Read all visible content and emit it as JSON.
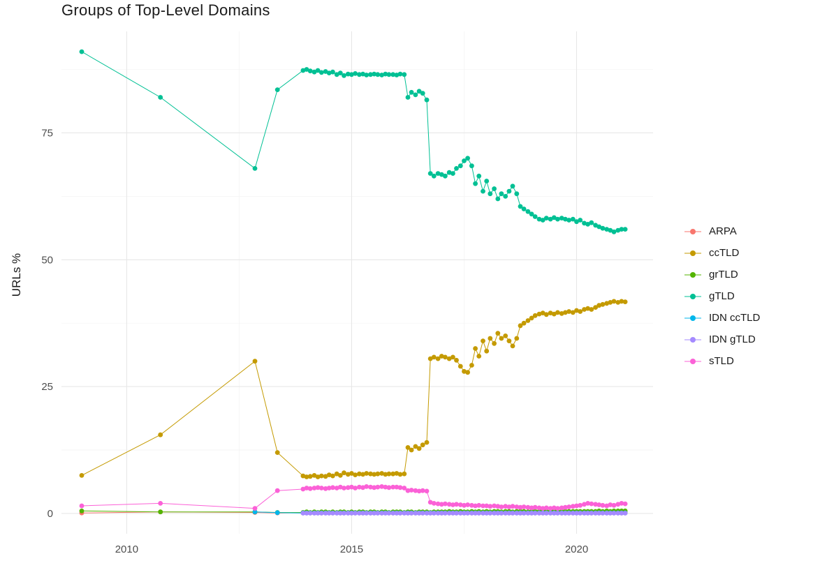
{
  "page": {
    "background": "#ffffff"
  },
  "chart_data": {
    "type": "line",
    "title": "Groups of Top-Level Domains",
    "xlabel": "",
    "ylabel": "URLs %",
    "legend_position": "right",
    "grid": "major+minor",
    "x_ticks": [
      2010,
      2015,
      2020
    ],
    "y_ticks": [
      0,
      25,
      50,
      75
    ],
    "x_minor_ticks": [
      2012.5,
      2017.5
    ],
    "y_minor_ticks": [
      12.5,
      37.5,
      62.5,
      87.5
    ],
    "xlim": [
      2008.55,
      2021.7
    ],
    "ylim": [
      -4,
      95
    ],
    "x": [
      2009.0,
      2010.75,
      2012.85,
      2013.35,
      2013.92,
      2014.0,
      2014.08,
      2014.17,
      2014.25,
      2014.33,
      2014.42,
      2014.5,
      2014.58,
      2014.67,
      2014.75,
      2014.83,
      2014.92,
      2015.0,
      2015.08,
      2015.17,
      2015.25,
      2015.33,
      2015.42,
      2015.5,
      2015.58,
      2015.67,
      2015.75,
      2015.83,
      2015.92,
      2016.0,
      2016.08,
      2016.17,
      2016.25,
      2016.33,
      2016.42,
      2016.5,
      2016.58,
      2016.67,
      2016.75,
      2016.83,
      2016.92,
      2017.0,
      2017.08,
      2017.17,
      2017.25,
      2017.33,
      2017.42,
      2017.5,
      2017.58,
      2017.67,
      2017.75,
      2017.83,
      2017.92,
      2018.0,
      2018.08,
      2018.17,
      2018.25,
      2018.33,
      2018.42,
      2018.5,
      2018.58,
      2018.67,
      2018.75,
      2018.83,
      2018.92,
      2019.0,
      2019.08,
      2019.17,
      2019.25,
      2019.33,
      2019.42,
      2019.5,
      2019.58,
      2019.67,
      2019.75,
      2019.83,
      2019.92,
      2020.0,
      2020.08,
      2020.17,
      2020.25,
      2020.33,
      2020.42,
      2020.5,
      2020.58,
      2020.67,
      2020.75,
      2020.83,
      2020.92,
      2021.0,
      2021.08
    ],
    "series": [
      {
        "name": "ARPA",
        "color": "#F8766D",
        "values": [
          0.1,
          0.3,
          0.2,
          0.1,
          0.15,
          0.15,
          0.15,
          0.15,
          0.15,
          0.15,
          0.15,
          0.15,
          0.15,
          0.15,
          0.15,
          0.15,
          0.15,
          0.15,
          0.15,
          0.15,
          0.15,
          0.15,
          0.15,
          0.15,
          0.15,
          0.15,
          0.15,
          0.15,
          0.15,
          0.15,
          0.15,
          0.15,
          0.15,
          0.15,
          0.15,
          0.15,
          0.15,
          0.15,
          0.15,
          0.15,
          0.15,
          0.15,
          0.15,
          0.15,
          0.15,
          0.15,
          0.15,
          0.15,
          0.15,
          0.15,
          0.15,
          0.15,
          0.15,
          0.15,
          0.15,
          0.15,
          0.15,
          0.15,
          0.15,
          0.15,
          0.15,
          0.15,
          0.15,
          0.15,
          0.15,
          0.15,
          0.15,
          0.15,
          0.15,
          0.15,
          0.15,
          0.15,
          0.15,
          0.15,
          0.15,
          0.15,
          0.15,
          0.15,
          0.15,
          0.15,
          0.15,
          0.15,
          0.15,
          0.15,
          0.15,
          0.15,
          0.15,
          0.15,
          0.15,
          0.15,
          0.15
        ]
      },
      {
        "name": "ccTLD",
        "color": "#C49A00",
        "values": [
          7.5,
          15.5,
          30.0,
          12.0,
          7.4,
          7.2,
          7.3,
          7.5,
          7.2,
          7.4,
          7.3,
          7.6,
          7.4,
          7.8,
          7.5,
          8.0,
          7.7,
          7.9,
          7.6,
          7.8,
          7.7,
          7.9,
          7.8,
          7.7,
          7.8,
          7.9,
          7.7,
          7.8,
          7.8,
          7.9,
          7.7,
          7.8,
          13.0,
          12.5,
          13.2,
          12.8,
          13.5,
          14.0,
          30.5,
          30.8,
          30.5,
          31.0,
          30.8,
          30.5,
          30.8,
          30.2,
          29.0,
          28.0,
          27.8,
          29.2,
          32.5,
          31.0,
          34.0,
          32.0,
          34.5,
          33.5,
          35.5,
          34.5,
          35.0,
          34.0,
          33.0,
          34.5,
          37.0,
          37.5,
          38.0,
          38.5,
          39.0,
          39.3,
          39.5,
          39.2,
          39.5,
          39.3,
          39.6,
          39.4,
          39.6,
          39.8,
          39.6,
          40.0,
          39.8,
          40.2,
          40.4,
          40.2,
          40.6,
          41.0,
          41.2,
          41.4,
          41.6,
          41.8,
          41.6,
          41.8,
          41.7
        ]
      },
      {
        "name": "grTLD",
        "color": "#53B400",
        "values": [
          0.5,
          0.3,
          0.3,
          0.2,
          0.2,
          0.3,
          0.2,
          0.3,
          0.2,
          0.3,
          0.3,
          0.2,
          0.3,
          0.2,
          0.3,
          0.3,
          0.2,
          0.3,
          0.2,
          0.3,
          0.3,
          0.2,
          0.3,
          0.3,
          0.2,
          0.3,
          0.3,
          0.2,
          0.3,
          0.3,
          0.3,
          0.2,
          0.3,
          0.3,
          0.2,
          0.3,
          0.3,
          0.3,
          0.2,
          0.3,
          0.3,
          0.3,
          0.3,
          0.4,
          0.3,
          0.3,
          0.4,
          0.3,
          0.3,
          0.4,
          0.3,
          0.4,
          0.3,
          0.4,
          0.3,
          0.4,
          0.4,
          0.3,
          0.4,
          0.4,
          0.3,
          0.4,
          0.4,
          0.4,
          0.3,
          0.4,
          0.4,
          0.4,
          0.4,
          0.4,
          0.4,
          0.4,
          0.4,
          0.4,
          0.4,
          0.4,
          0.4,
          0.4,
          0.4,
          0.4,
          0.4,
          0.4,
          0.4,
          0.5,
          0.4,
          0.5,
          0.4,
          0.5,
          0.5,
          0.5,
          0.5
        ]
      },
      {
        "name": "gTLD",
        "color": "#00C094",
        "values": [
          91.0,
          82.0,
          68.0,
          83.5,
          87.3,
          87.5,
          87.2,
          87.0,
          87.3,
          86.9,
          87.1,
          86.8,
          87.0,
          86.5,
          86.8,
          86.3,
          86.6,
          86.5,
          86.7,
          86.5,
          86.6,
          86.4,
          86.5,
          86.6,
          86.5,
          86.4,
          86.6,
          86.5,
          86.5,
          86.4,
          86.6,
          86.5,
          82.0,
          83.0,
          82.5,
          83.2,
          82.8,
          81.5,
          67.0,
          66.5,
          67.0,
          66.8,
          66.5,
          67.2,
          67.0,
          68.0,
          68.5,
          69.5,
          70.0,
          68.5,
          65.0,
          66.5,
          63.5,
          65.5,
          63.0,
          64.0,
          62.0,
          63.0,
          62.5,
          63.5,
          64.5,
          63.0,
          60.5,
          60.0,
          59.5,
          59.0,
          58.5,
          58.0,
          57.8,
          58.2,
          58.0,
          58.3,
          58.0,
          58.2,
          58.0,
          57.8,
          58.0,
          57.5,
          57.8,
          57.2,
          57.0,
          57.3,
          56.8,
          56.5,
          56.2,
          56.0,
          55.8,
          55.5,
          55.8,
          56.0,
          56.0
        ]
      },
      {
        "name": "IDN ccTLD",
        "color": "#00B6EB",
        "values": [
          null,
          null,
          0.3,
          0.15,
          0.1,
          0.1,
          0.1,
          0.1,
          0.1,
          0.1,
          0.1,
          0.1,
          0.1,
          0.1,
          0.1,
          0.1,
          0.1,
          0.1,
          0.1,
          0.1,
          0.1,
          0.1,
          0.1,
          0.1,
          0.1,
          0.1,
          0.1,
          0.1,
          0.1,
          0.1,
          0.1,
          0.1,
          0.1,
          0.1,
          0.1,
          0.1,
          0.1,
          0.1,
          0.1,
          0.1,
          0.1,
          0.1,
          0.1,
          0.1,
          0.1,
          0.1,
          0.1,
          0.1,
          0.1,
          0.1,
          0.1,
          0.1,
          0.1,
          0.1,
          0.1,
          0.1,
          0.1,
          0.1,
          0.1,
          0.1,
          0.1,
          0.1,
          0.1,
          0.1,
          0.1,
          0.1,
          0.1,
          0.1,
          0.1,
          0.1,
          0.1,
          0.1,
          0.1,
          0.1,
          0.1,
          0.1,
          0.1,
          0.1,
          0.1,
          0.1,
          0.1,
          0.1,
          0.1,
          0.1,
          0.1,
          0.1,
          0.1,
          0.1,
          0.1,
          0.1,
          0.1
        ]
      },
      {
        "name": "IDN gTLD",
        "color": "#A58AFF",
        "values": [
          null,
          null,
          null,
          null,
          0.05,
          0.05,
          0.05,
          0.05,
          0.05,
          0.05,
          0.05,
          0.05,
          0.05,
          0.05,
          0.05,
          0.05,
          0.05,
          0.05,
          0.05,
          0.05,
          0.05,
          0.05,
          0.05,
          0.05,
          0.05,
          0.05,
          0.05,
          0.05,
          0.05,
          0.05,
          0.05,
          0.05,
          0.05,
          0.05,
          0.05,
          0.05,
          0.05,
          0.05,
          0.05,
          0.05,
          0.05,
          0.05,
          0.05,
          0.05,
          0.05,
          0.05,
          0.05,
          0.05,
          0.05,
          0.05,
          0.05,
          0.05,
          0.05,
          0.05,
          0.05,
          0.05,
          0.05,
          0.05,
          0.05,
          0.05,
          0.05,
          0.05,
          0.05,
          0.05,
          0.05,
          0.05,
          0.05,
          0.05,
          0.05,
          0.05,
          0.05,
          0.05,
          0.05,
          0.05,
          0.05,
          0.05,
          0.05,
          0.05,
          0.05,
          0.05,
          0.05,
          0.05,
          0.05,
          0.05,
          0.05,
          0.05,
          0.05,
          0.05,
          0.05,
          0.05,
          0.05
        ]
      },
      {
        "name": "sTLD",
        "color": "#FB61D7",
        "values": [
          1.5,
          2.0,
          1.0,
          4.5,
          4.8,
          5.0,
          4.9,
          5.0,
          5.1,
          5.0,
          4.9,
          5.0,
          5.1,
          5.0,
          5.2,
          5.0,
          5.1,
          5.2,
          5.0,
          5.2,
          5.1,
          5.3,
          5.2,
          5.1,
          5.2,
          5.3,
          5.2,
          5.1,
          5.2,
          5.2,
          5.1,
          5.0,
          4.5,
          4.6,
          4.5,
          4.4,
          4.5,
          4.4,
          2.2,
          2.0,
          1.9,
          1.8,
          1.9,
          1.8,
          1.7,
          1.8,
          1.7,
          1.6,
          1.7,
          1.6,
          1.5,
          1.6,
          1.5,
          1.5,
          1.4,
          1.5,
          1.4,
          1.3,
          1.4,
          1.3,
          1.4,
          1.3,
          1.2,
          1.3,
          1.2,
          1.1,
          1.2,
          1.1,
          1.0,
          1.1,
          1.0,
          1.1,
          1.0,
          1.1,
          1.2,
          1.3,
          1.4,
          1.5,
          1.6,
          1.8,
          2.0,
          1.9,
          1.8,
          1.7,
          1.6,
          1.5,
          1.7,
          1.6,
          1.8,
          2.0,
          1.9
        ]
      }
    ],
    "style": {
      "grid_major_color": "#e7e7e7",
      "grid_minor_color": "#f3f3f3",
      "tick_label_color": "#4d4d4d",
      "title_color": "#1a1a1a"
    }
  }
}
